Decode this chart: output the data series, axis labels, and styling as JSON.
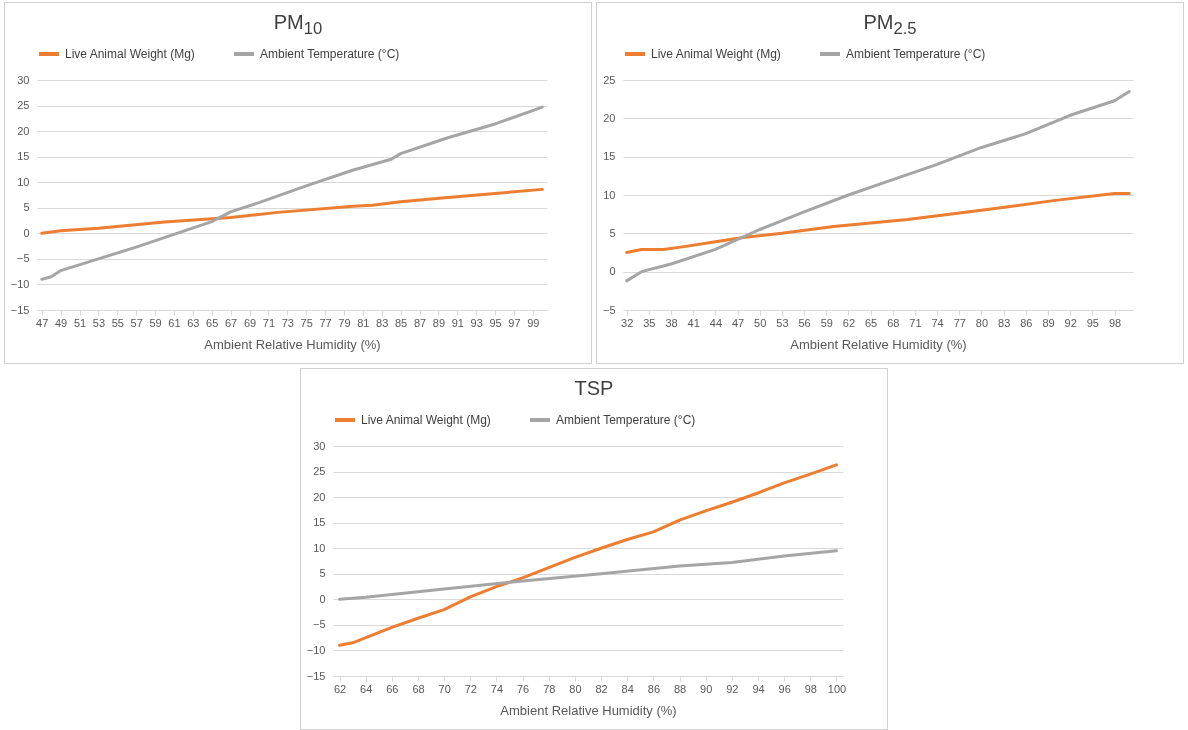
{
  "chart_data": [
    {
      "type": "line",
      "title": "PM$_{10}$",
      "xlabel": "Ambient  Relative Humidity (%)",
      "xlim": [
        46.5,
        100.5
      ],
      "xticks": [
        47,
        49,
        51,
        53,
        55,
        57,
        59,
        61,
        63,
        65,
        67,
        69,
        71,
        73,
        75,
        77,
        79,
        81,
        83,
        85,
        87,
        89,
        91,
        93,
        95,
        97,
        99
      ],
      "ylim": [
        -15,
        30
      ],
      "yticks": [
        -15,
        -10,
        -5,
        0,
        5,
        10,
        15,
        20,
        25,
        30
      ],
      "grid": "y",
      "legend": "top",
      "series": [
        {
          "name": "Live Animal Weight (Mg)",
          "color": "#ed7d31",
          "x": [
            47,
            49,
            53,
            60,
            67,
            72,
            80,
            82,
            85,
            90,
            95,
            100
          ],
          "values": [
            0,
            0.5,
            1,
            2.2,
            3.1,
            4.1,
            5.3,
            5.5,
            6.2,
            7,
            7.8,
            8.6
          ]
        },
        {
          "name": "Ambient Temperature (°C)",
          "color": "#a5a5a5",
          "x": [
            47,
            48,
            49,
            53,
            57,
            61,
            65,
            67,
            70,
            75,
            80,
            84,
            85,
            90,
            95,
            100
          ],
          "values": [
            -9,
            -8.5,
            -7.3,
            -5,
            -2.7,
            -0.2,
            2.3,
            4.2,
            6,
            9.3,
            12.4,
            14.5,
            15.6,
            18.7,
            21.4,
            24.7
          ]
        }
      ]
    },
    {
      "type": "line",
      "title": "PM$_{2.5}$",
      "xlabel": "Ambient  Relative Humidity (%)",
      "xlim": [
        31.5,
        100.5
      ],
      "xticks": [
        32,
        35,
        38,
        41,
        44,
        47,
        50,
        53,
        56,
        59,
        62,
        65,
        68,
        71,
        74,
        77,
        80,
        83,
        86,
        89,
        92,
        95,
        98
      ],
      "ylim": [
        -5,
        25
      ],
      "yticks": [
        -5,
        0,
        5,
        10,
        15,
        20,
        25
      ],
      "grid": "y",
      "legend": "top",
      "series": [
        {
          "name": "Live Animal Weight (Mg)",
          "color": "#ed7d31",
          "x": [
            32,
            34,
            37,
            40,
            44,
            48,
            53,
            60,
            70,
            80,
            90,
            98,
            100
          ],
          "values": [
            2.5,
            2.9,
            2.9,
            3.3,
            3.9,
            4.5,
            5,
            5.9,
            6.8,
            8,
            9.3,
            10.2,
            10.2
          ]
        },
        {
          "name": "Ambient Temperature (°C)",
          "color": "#a5a5a5",
          "x": [
            32,
            34,
            38,
            44,
            50,
            56,
            62,
            68,
            74,
            80,
            86,
            92,
            98,
            100
          ],
          "values": [
            -1.2,
            0,
            1,
            2.9,
            5.5,
            7.8,
            10,
            12,
            14,
            16.2,
            18,
            20.4,
            22.3,
            23.5
          ]
        }
      ]
    },
    {
      "type": "line",
      "title": "TSP",
      "xlabel": "Ambient  Relative Humidity (%)",
      "xlim": [
        61.5,
        100.5
      ],
      "xticks": [
        62,
        64,
        66,
        68,
        70,
        72,
        74,
        76,
        78,
        80,
        82,
        84,
        86,
        88,
        90,
        92,
        94,
        96,
        98,
        100
      ],
      "ylim": [
        -15,
        30
      ],
      "yticks": [
        -15,
        -10,
        -5,
        0,
        5,
        10,
        15,
        20,
        25,
        30
      ],
      "grid": "y",
      "legend": "top",
      "series": [
        {
          "name": "Live Animal Weight (Mg)",
          "color": "#ed7d31",
          "x": [
            62,
            63,
            66,
            68,
            70,
            72,
            74,
            76,
            78,
            80,
            82,
            84,
            86,
            88,
            90,
            92,
            94,
            96,
            98,
            100
          ],
          "values": [
            -9,
            -8.5,
            -5.5,
            -3.7,
            -2,
            0.5,
            2.5,
            4.2,
            6.2,
            8.2,
            10,
            11.7,
            13.2,
            15.5,
            17.3,
            19,
            20.8,
            22.8,
            24.5,
            26.3
          ]
        },
        {
          "name": "Ambient Temperature (°C)",
          "color": "#a5a5a5",
          "x": [
            62,
            64,
            70,
            76,
            82,
            88,
            92,
            96,
            100
          ],
          "values": [
            0,
            0.4,
            2,
            3.6,
            5,
            6.5,
            7.2,
            8.5,
            9.5
          ]
        }
      ]
    }
  ]
}
